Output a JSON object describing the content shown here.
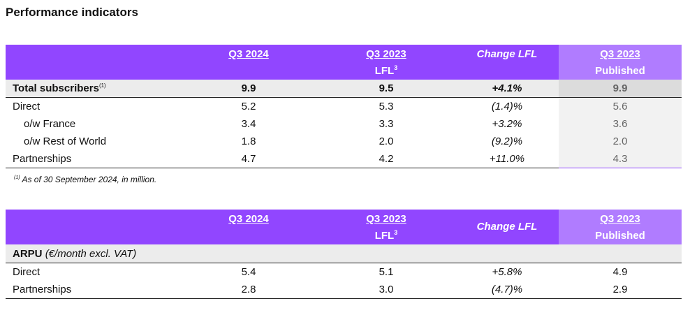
{
  "title": "Performance indicators",
  "table1": {
    "headers": {
      "col1": "Q3 2024",
      "col2": "Q3 2023",
      "col2_sub": "LFL",
      "col2_sup": "3",
      "col3": "Change LFL",
      "col4": "Q3 2023",
      "col4_sub": "Published"
    },
    "total": {
      "label": "Total subscribers",
      "note": "(1)",
      "q3_2024": "9.9",
      "q3_2023_lfl": "9.5",
      "change": "+4.1%",
      "published": "9.9"
    },
    "rows": [
      {
        "label": "Direct",
        "q3_2024": "5.2",
        "q3_2023_lfl": "5.3",
        "change": "(1.4)%",
        "published": "5.6"
      },
      {
        "label": "o/w France",
        "q3_2024": "3.4",
        "q3_2023_lfl": "3.3",
        "change": "+3.2%",
        "published": "3.6"
      },
      {
        "label": "o/w Rest of World",
        "q3_2024": "1.8",
        "q3_2023_lfl": "2.0",
        "change": "(9.2)%",
        "published": "2.0"
      },
      {
        "label": "Partnerships",
        "q3_2024": "4.7",
        "q3_2023_lfl": "4.2",
        "change": "+11.0%",
        "published": "4.3"
      }
    ]
  },
  "footnote": {
    "mark": "(1)",
    "text": "As of 30 September 2024, in million."
  },
  "table2": {
    "headers": {
      "col1": "Q3 2024",
      "col2": "Q3 2023",
      "col2_sub": "LFL",
      "col2_sup": "3",
      "col3": "Change LFL",
      "col4": "Q3 2023",
      "col4_sub": "Published"
    },
    "section": {
      "label": "ARPU",
      "label_italic": "(€/month excl. VAT)"
    },
    "rows": [
      {
        "label": "Direct",
        "q3_2024": "5.4",
        "q3_2023_lfl": "5.1",
        "change": "+5.8%",
        "published": "4.9"
      },
      {
        "label": "Partnerships",
        "q3_2024": "2.8",
        "q3_2023_lfl": "3.0",
        "change": "(4.7)%",
        "published": "2.9"
      }
    ]
  }
}
